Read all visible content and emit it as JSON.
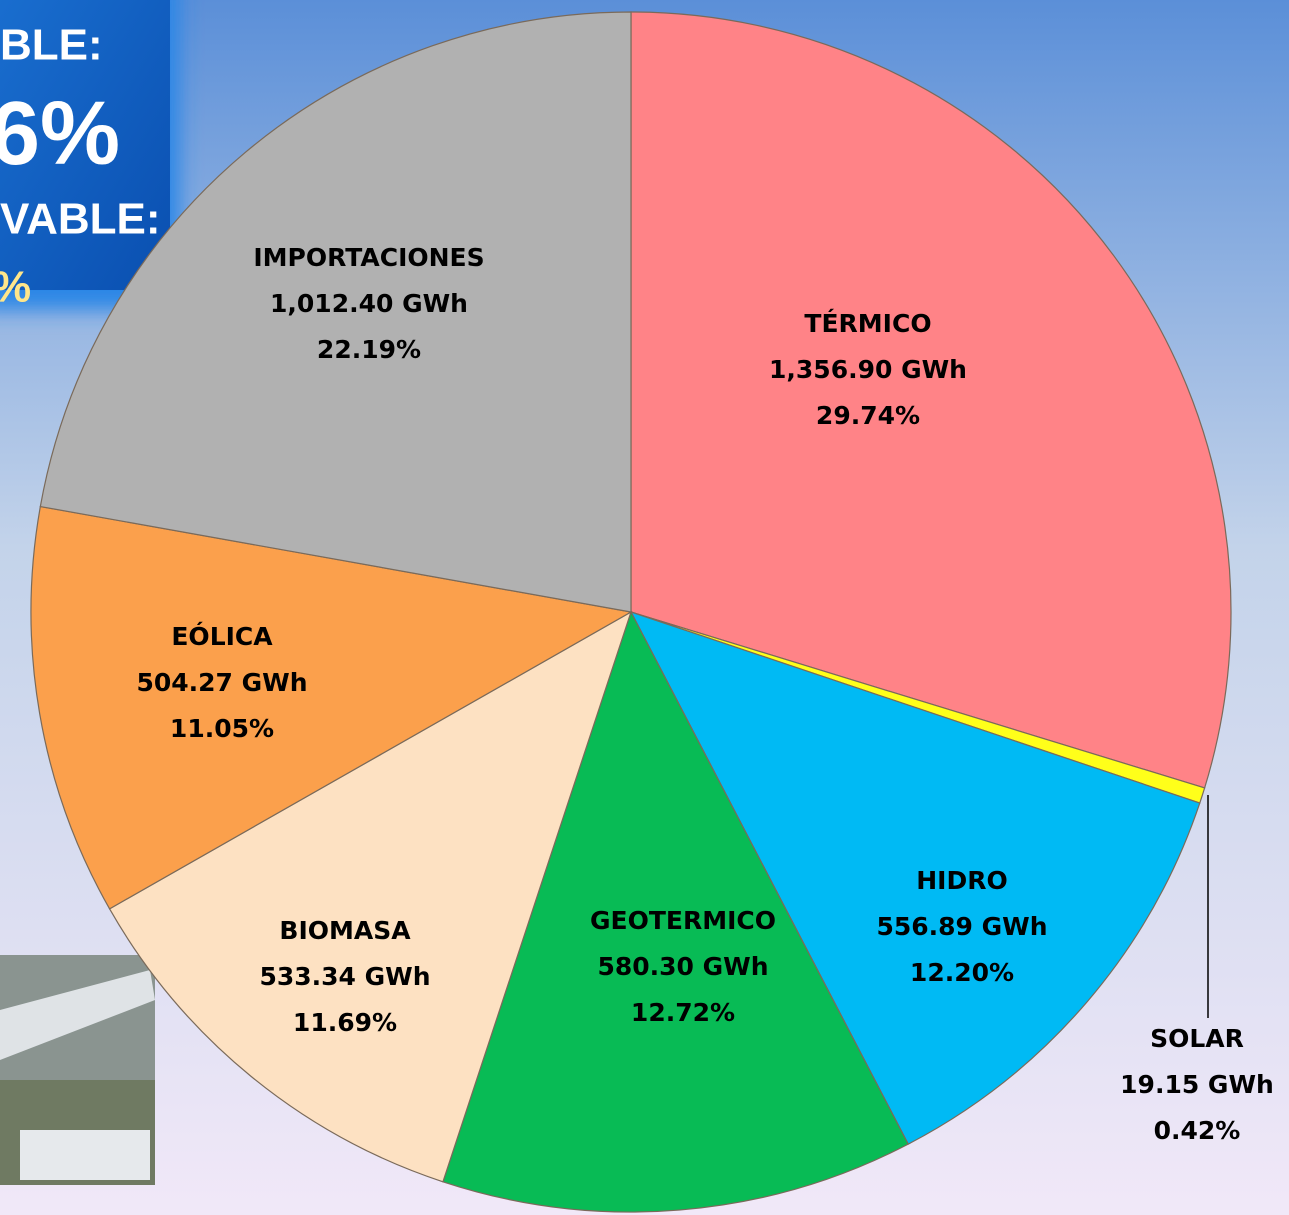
{
  "chart_data": {
    "type": "pie",
    "categories": [
      "TÉRMICO",
      "SOLAR",
      "HIDRO",
      "GEOTERMICO",
      "BIOMASA",
      "EÓLICA",
      "IMPORTACIONES"
    ],
    "values": [
      29.74,
      0.42,
      12.2,
      12.72,
      11.69,
      11.05,
      22.19
    ],
    "value_labels": [
      "29.74%",
      "0.42%",
      "12.20%",
      "12.72%",
      "11.69%",
      "11.05%",
      "22.19%"
    ],
    "energy_labels": [
      "1,356.90 GWh",
      "19.15 GWh",
      "556.89 GWh",
      "580.30 GWh",
      "533.34 GWh",
      "504.27 GWh",
      "1,012.40  GWh"
    ],
    "colors": [
      "#ff8387",
      "#ffff1a",
      "#00baf4",
      "#08bb55",
      "#fde1c2",
      "#fba04c",
      "#b1b1b1"
    ],
    "annotations": [
      "BLE:",
      "6%",
      "VABLE:",
      "%"
    ]
  }
}
